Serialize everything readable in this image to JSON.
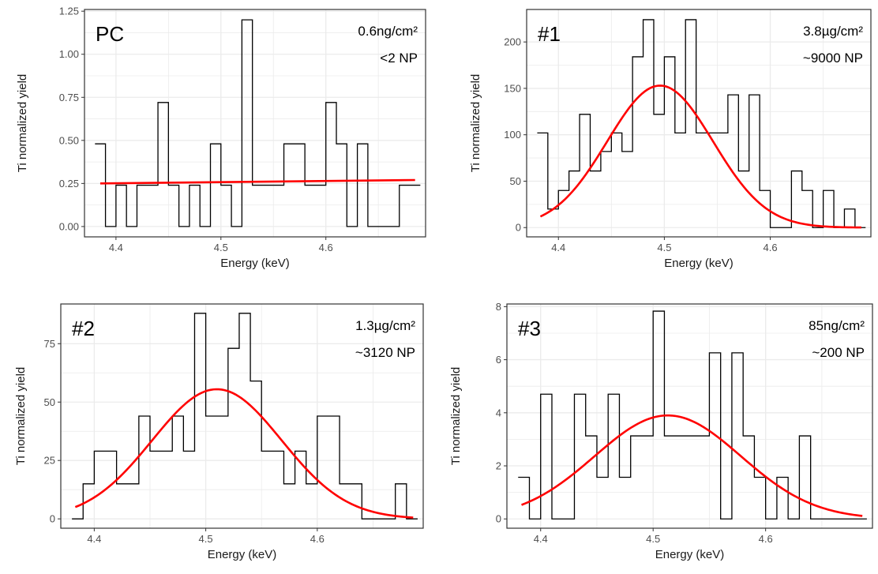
{
  "colors": {
    "step": "#000000",
    "fit": "#ff0000",
    "grid": "#ebebeb",
    "frame": "#333333"
  },
  "chart_data": [
    {
      "type": "line",
      "panel_label": "PC",
      "annotation": [
        "0.6ng/cm²",
        "<2 NP"
      ],
      "xlabel": "Energy (keV)",
      "ylabel": "Ti normalized yield",
      "xlim": [
        4.37,
        4.695
      ],
      "ylim": [
        -0.06,
        1.26
      ],
      "xticks": [
        4.4,
        4.5,
        4.6
      ],
      "xtick_labels": [
        "4.4",
        "4.5",
        "4.6"
      ],
      "yticks": [
        0,
        0.25,
        0.5,
        0.75,
        1.0,
        1.25
      ],
      "ytick_labels": [
        "0.00",
        "0.25",
        "0.50",
        "0.75",
        "1.00",
        "1.25"
      ],
      "grid": true,
      "series": [
        {
          "style": "step",
          "x": [
            4.385,
            4.395,
            4.405,
            4.415,
            4.425,
            4.435,
            4.445,
            4.455,
            4.465,
            4.475,
            4.485,
            4.495,
            4.505,
            4.515,
            4.525,
            4.535,
            4.545,
            4.555,
            4.565,
            4.575,
            4.585,
            4.595,
            4.605,
            4.615,
            4.625,
            4.635,
            4.645,
            4.655,
            4.665,
            4.675,
            4.685
          ],
          "y": [
            0.48,
            0.0,
            0.24,
            0.0,
            0.24,
            0.24,
            0.72,
            0.24,
            0.0,
            0.24,
            0.0,
            0.48,
            0.24,
            0.0,
            1.2,
            0.24,
            0.24,
            0.24,
            0.48,
            0.48,
            0.24,
            0.24,
            0.72,
            0.48,
            0.0,
            0.48,
            0.0,
            0.0,
            0.0,
            0.24,
            0.24
          ]
        },
        {
          "style": "fit",
          "x": [
            4.385,
            4.685
          ],
          "y": [
            0.25,
            0.27
          ]
        }
      ]
    },
    {
      "type": "line",
      "panel_label": "#1",
      "annotation": [
        "3.8µg/cm²",
        "~9000 NP"
      ],
      "xlabel": "Energy (keV)",
      "ylabel": "Ti normalized yield",
      "xlim": [
        4.37,
        4.695
      ],
      "ylim": [
        -10,
        235
      ],
      "xticks": [
        4.4,
        4.5,
        4.6
      ],
      "xtick_labels": [
        "4.4",
        "4.5",
        "4.6"
      ],
      "yticks": [
        0,
        50,
        100,
        150,
        200
      ],
      "ytick_labels": [
        "0",
        "50",
        "100",
        "150",
        "200"
      ],
      "grid": true,
      "series": [
        {
          "style": "step",
          "x": [
            4.385,
            4.395,
            4.405,
            4.415,
            4.425,
            4.435,
            4.445,
            4.455,
            4.465,
            4.475,
            4.485,
            4.495,
            4.505,
            4.515,
            4.525,
            4.535,
            4.545,
            4.555,
            4.565,
            4.575,
            4.585,
            4.595,
            4.605,
            4.615,
            4.625,
            4.635,
            4.645,
            4.655,
            4.665,
            4.675,
            4.685
          ],
          "y": [
            102,
            20,
            40,
            61,
            122,
            61,
            82,
            102,
            82,
            184,
            224,
            122,
            184,
            102,
            224,
            102,
            102,
            102,
            143,
            61,
            143,
            40,
            0,
            0,
            61,
            40,
            0,
            40,
            0,
            20,
            0
          ]
        },
        {
          "style": "fit",
          "gaussian": {
            "amplitude": 153,
            "center": 4.496,
            "sigma": 0.05
          },
          "x_range": [
            4.383,
            4.686
          ]
        }
      ]
    },
    {
      "type": "line",
      "panel_label": "#2",
      "annotation": [
        "1.3µg/cm²",
        "~3120 NP"
      ],
      "xlabel": "Energy (keV)",
      "ylabel": "Ti normalized yield",
      "xlim": [
        4.37,
        4.695
      ],
      "ylim": [
        -4,
        92
      ],
      "xticks": [
        4.4,
        4.5,
        4.6
      ],
      "xtick_labels": [
        "4.4",
        "4.5",
        "4.6"
      ],
      "yticks": [
        0,
        25,
        50,
        75
      ],
      "ytick_labels": [
        "0",
        "25",
        "50",
        "75"
      ],
      "grid": true,
      "series": [
        {
          "style": "step",
          "x": [
            4.385,
            4.395,
            4.405,
            4.415,
            4.425,
            4.435,
            4.445,
            4.455,
            4.465,
            4.475,
            4.485,
            4.495,
            4.505,
            4.515,
            4.525,
            4.535,
            4.545,
            4.555,
            4.565,
            4.575,
            4.585,
            4.595,
            4.605,
            4.615,
            4.625,
            4.635,
            4.645,
            4.655,
            4.665,
            4.675,
            4.685
          ],
          "y": [
            0,
            15,
            29,
            29,
            15,
            15,
            44,
            29,
            29,
            44,
            29,
            88,
            44,
            44,
            73,
            88,
            59,
            29,
            29,
            15,
            29,
            15,
            44,
            44,
            15,
            15,
            0,
            0,
            0,
            15,
            0
          ]
        },
        {
          "style": "fit",
          "gaussian": {
            "amplitude": 55.5,
            "center": 4.51,
            "sigma": 0.058
          },
          "x_range": [
            4.383,
            4.686
          ]
        }
      ]
    },
    {
      "type": "line",
      "panel_label": "#3",
      "annotation": [
        "85ng/cm²",
        "~200 NP"
      ],
      "xlabel": "Energy (keV)",
      "ylabel": "Ti normalized yield",
      "xlim": [
        4.37,
        4.695
      ],
      "ylim": [
        -0.35,
        8.1
      ],
      "xticks": [
        4.4,
        4.5,
        4.6
      ],
      "xtick_labels": [
        "4.4",
        "4.5",
        "4.6"
      ],
      "yticks": [
        0,
        2,
        4,
        6,
        8
      ],
      "ytick_labels": [
        "0",
        "2",
        "4",
        "6",
        "8"
      ],
      "grid": true,
      "series": [
        {
          "style": "step",
          "x": [
            4.385,
            4.395,
            4.405,
            4.415,
            4.425,
            4.435,
            4.445,
            4.455,
            4.465,
            4.475,
            4.485,
            4.495,
            4.505,
            4.515,
            4.525,
            4.535,
            4.545,
            4.555,
            4.565,
            4.575,
            4.585,
            4.595,
            4.605,
            4.615,
            4.625,
            4.635,
            4.645,
            4.655,
            4.665,
            4.675,
            4.685
          ],
          "y": [
            1.57,
            0,
            4.7,
            0,
            0,
            4.7,
            3.13,
            1.57,
            4.7,
            1.57,
            3.13,
            3.13,
            7.83,
            3.13,
            3.13,
            3.13,
            3.13,
            6.26,
            0,
            6.26,
            3.13,
            1.57,
            0,
            1.57,
            0,
            3.13,
            0,
            0,
            0,
            0,
            0
          ]
        },
        {
          "style": "fit",
          "gaussian": {
            "amplitude": 3.9,
            "center": 4.513,
            "sigma": 0.065
          },
          "x_range": [
            4.383,
            4.686
          ]
        }
      ]
    }
  ]
}
